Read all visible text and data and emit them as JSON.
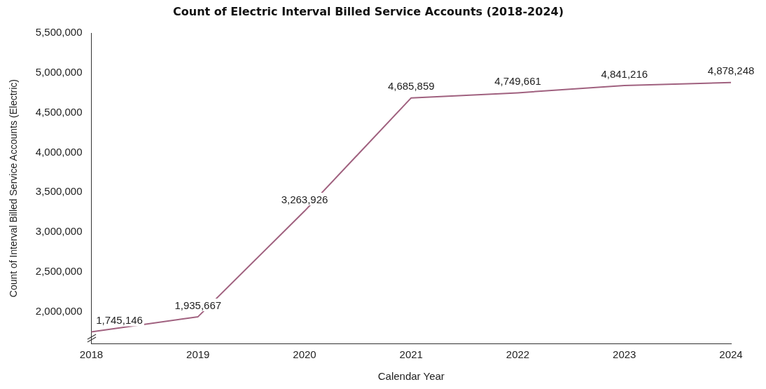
{
  "chart_data": {
    "type": "line",
    "title": "Count of Electric Interval Billed Service Accounts (2018-2024)",
    "xlabel": "Calendar Year",
    "ylabel": "Count of Interval Billed Service Accounts (Electric)",
    "categories": [
      "2018",
      "2019",
      "2020",
      "2021",
      "2022",
      "2023",
      "2024"
    ],
    "series": [
      {
        "color": "#a0617f",
        "values": [
          1745146,
          1935667,
          3263926,
          4685859,
          4749661,
          4841216,
          4878248
        ],
        "value_labels": [
          "1,745,146",
          "1,935,667",
          "3,263,926",
          "4,685,859",
          "4,749,661",
          "4,841,216",
          "4,878,248"
        ]
      }
    ],
    "ylim": [
      1600000,
      5500000
    ],
    "yticks": [
      {
        "value": 2000000,
        "label": "2,000,000"
      },
      {
        "value": 2500000,
        "label": "2,500,000"
      },
      {
        "value": 3000000,
        "label": "3,000,000"
      },
      {
        "value": 3500000,
        "label": "3,500,000"
      },
      {
        "value": 4000000,
        "label": "4,000,000"
      },
      {
        "value": 4500000,
        "label": "4,500,000"
      },
      {
        "value": 5000000,
        "label": "5,000,000"
      },
      {
        "value": 5500000,
        "label": "5,500,000"
      }
    ],
    "grid": false,
    "legend": false,
    "marker": "none",
    "line_style": "solid"
  }
}
